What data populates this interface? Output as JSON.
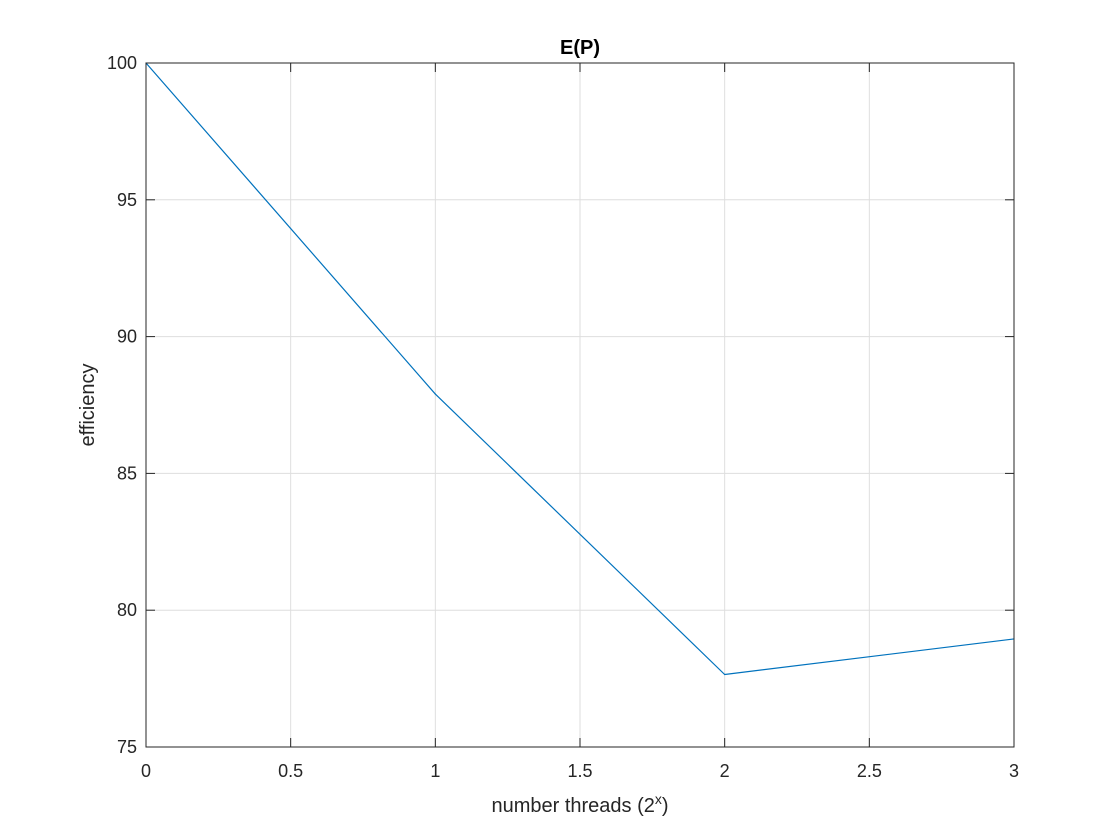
{
  "chart_data": {
    "type": "line",
    "title": "E(P)",
    "xlabel_main": "number threads (2",
    "xlabel_sup": "x",
    "xlabel_close": ")",
    "ylabel": "efficiency",
    "xlim": [
      0,
      3
    ],
    "ylim": [
      75,
      100
    ],
    "xticks": [
      0,
      0.5,
      1,
      1.5,
      2,
      2.5,
      3
    ],
    "xtick_labels": [
      "0",
      "0.5",
      "1",
      "1.5",
      "2",
      "2.5",
      "3"
    ],
    "yticks": [
      75,
      80,
      85,
      90,
      95,
      100
    ],
    "ytick_labels": [
      "75",
      "80",
      "85",
      "90",
      "95",
      "100"
    ],
    "grid": true,
    "series": [
      {
        "color": "#0072bd",
        "x": [
          0,
          1,
          2,
          3
        ],
        "y": [
          100,
          87.9,
          77.65,
          78.95
        ]
      }
    ]
  }
}
